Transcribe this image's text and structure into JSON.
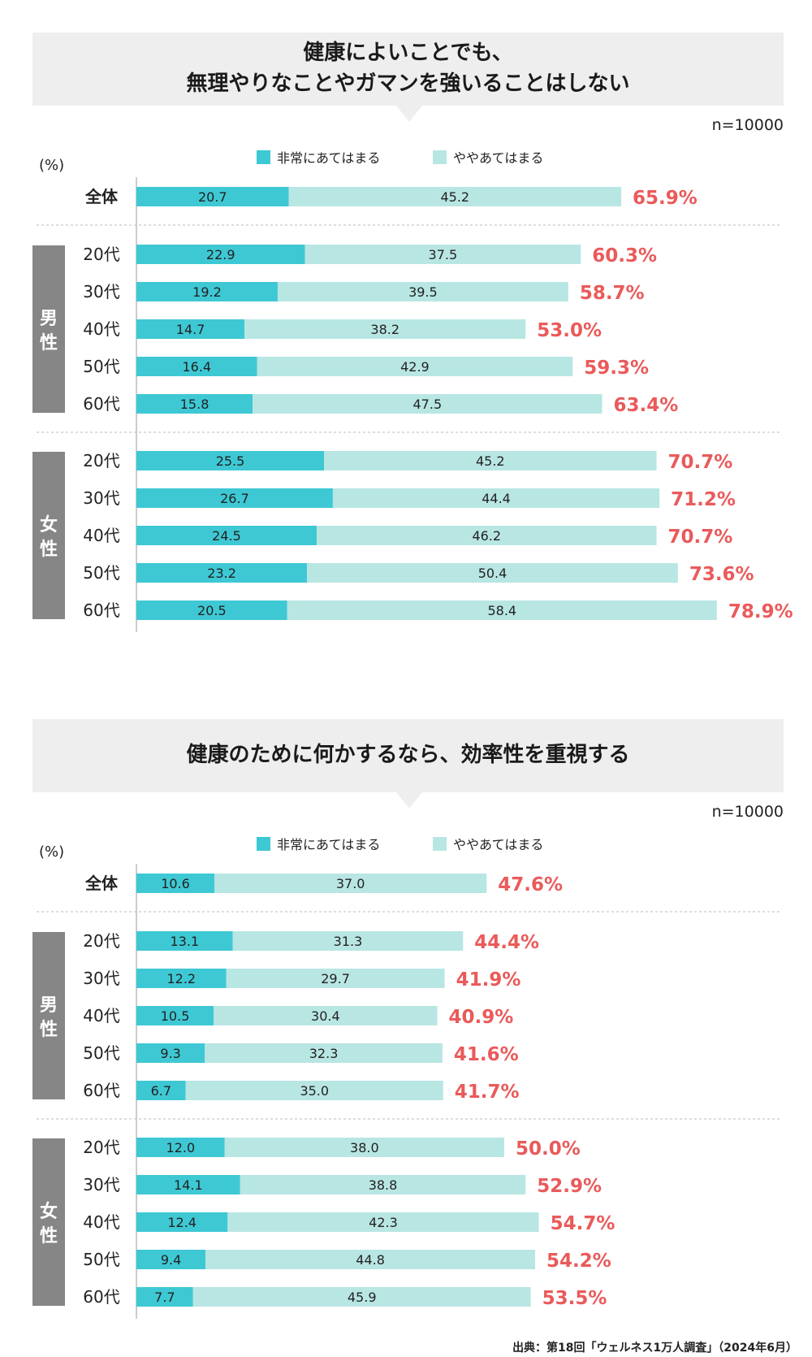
{
  "unit": "(%)",
  "legend": {
    "strong": "非常にあてはまる",
    "some": "ややあてはまる"
  },
  "group_labels": {
    "male": "男\n性",
    "female": "女\n性"
  },
  "colors": {
    "strong": "#3ec8d4",
    "some": "#b8e6e3",
    "total": "#ea5a5a",
    "group_bg": "#868686"
  },
  "source": "出典：第18回「ウェルネス1万人調査」（2024年6月）",
  "chart_data": [
    {
      "type": "bar",
      "orientation": "horizontal",
      "stacked": true,
      "title": "健康によいことでも、\n無理やりなことやガマンを強いることはしない",
      "n": "n=10000",
      "categories": [
        "全体",
        "20代",
        "30代",
        "40代",
        "50代",
        "60代",
        "20代",
        "30代",
        "40代",
        "50代",
        "60代"
      ],
      "groups": [
        "",
        "男性",
        "男性",
        "男性",
        "男性",
        "男性",
        "女性",
        "女性",
        "女性",
        "女性",
        "女性"
      ],
      "series": [
        {
          "name": "非常にあてはまる",
          "values": [
            20.7,
            22.9,
            19.2,
            14.7,
            16.4,
            15.8,
            25.5,
            26.7,
            24.5,
            23.2,
            20.5
          ]
        },
        {
          "name": "ややあてはまる",
          "values": [
            45.2,
            37.5,
            39.5,
            38.2,
            42.9,
            47.5,
            45.2,
            44.4,
            46.2,
            50.4,
            58.4
          ]
        }
      ],
      "totals": [
        "65.9%",
        "60.3%",
        "58.7%",
        "53.0%",
        "59.3%",
        "63.4%",
        "70.7%",
        "71.2%",
        "70.7%",
        "73.6%",
        "78.9%"
      ]
    },
    {
      "type": "bar",
      "orientation": "horizontal",
      "stacked": true,
      "title": "健康のために何かするなら、効率性を重視する",
      "n": "n=10000",
      "categories": [
        "全体",
        "20代",
        "30代",
        "40代",
        "50代",
        "60代",
        "20代",
        "30代",
        "40代",
        "50代",
        "60代"
      ],
      "groups": [
        "",
        "男性",
        "男性",
        "男性",
        "男性",
        "男性",
        "女性",
        "女性",
        "女性",
        "女性",
        "女性"
      ],
      "series": [
        {
          "name": "非常にあてはまる",
          "values": [
            10.6,
            13.1,
            12.2,
            10.5,
            9.3,
            6.7,
            12.0,
            14.1,
            12.4,
            9.4,
            7.7
          ]
        },
        {
          "name": "ややあてはまる",
          "values": [
            37.0,
            31.3,
            29.7,
            30.4,
            32.3,
            35.0,
            38.0,
            38.8,
            42.3,
            44.8,
            45.9
          ]
        }
      ],
      "totals": [
        "47.6%",
        "44.4%",
        "41.9%",
        "40.9%",
        "41.6%",
        "41.7%",
        "50.0%",
        "52.9%",
        "54.7%",
        "54.2%",
        "53.5%"
      ]
    }
  ]
}
